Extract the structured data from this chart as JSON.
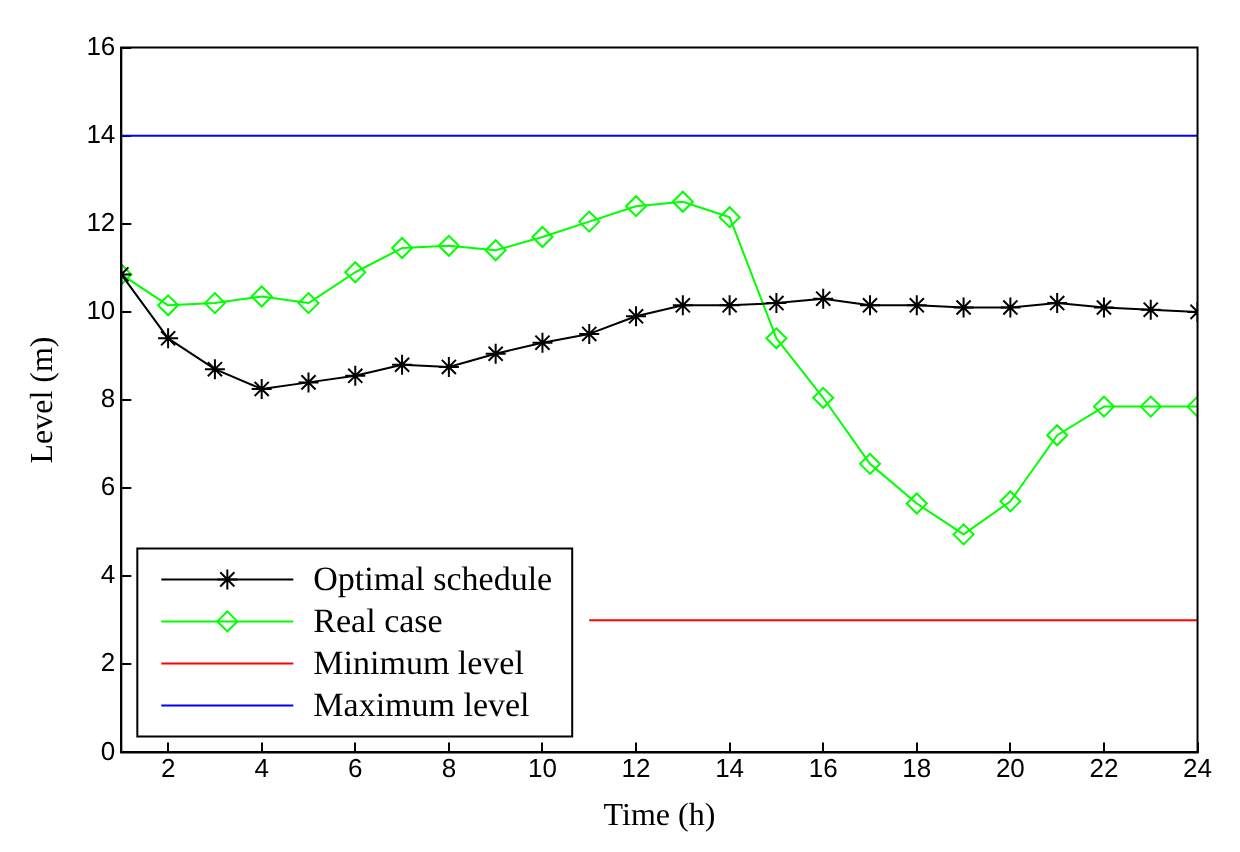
{
  "chart_data": {
    "type": "line",
    "xlabel": "Time (h)",
    "ylabel": "Level (m)",
    "x": [
      1,
      2,
      3,
      4,
      5,
      6,
      7,
      8,
      9,
      10,
      11,
      12,
      13,
      14,
      15,
      16,
      17,
      18,
      19,
      20,
      21,
      22,
      23,
      24
    ],
    "series": [
      {
        "name": "Optimal schedule",
        "color": "#000000",
        "marker": "cross",
        "values": [
          10.85,
          9.4,
          8.7,
          8.25,
          8.4,
          8.55,
          8.8,
          8.75,
          9.05,
          9.3,
          9.5,
          9.9,
          10.15,
          10.15,
          10.2,
          10.3,
          10.15,
          10.15,
          10.1,
          10.1,
          10.2,
          10.1,
          10.05,
          10.0
        ]
      },
      {
        "name": "Real case",
        "color": "#00ff00",
        "marker": "diamond",
        "values": [
          10.85,
          10.15,
          10.2,
          10.35,
          10.2,
          10.9,
          11.45,
          11.5,
          11.4,
          11.7,
          12.05,
          12.4,
          12.5,
          12.15,
          9.4,
          8.05,
          6.55,
          5.65,
          4.95,
          5.7,
          7.2,
          7.85,
          7.85,
          7.85
        ]
      },
      {
        "name": "Minimum level",
        "color": "#ff0000",
        "marker": "none",
        "values": [
          null,
          null,
          null,
          null,
          null,
          null,
          null,
          null,
          null,
          null,
          3,
          3,
          3,
          3,
          3,
          3,
          3,
          3,
          3,
          3,
          3,
          3,
          3,
          3
        ]
      },
      {
        "name": "Maximum level",
        "color": "#0000ff",
        "marker": "none",
        "values": [
          14,
          14,
          14,
          14,
          14,
          14,
          14,
          14,
          14,
          14,
          14,
          14,
          14,
          14,
          14,
          14,
          14,
          14,
          14,
          14,
          14,
          14,
          14,
          14
        ]
      }
    ],
    "xlim": [
      1,
      24
    ],
    "xticks": [
      2,
      4,
      6,
      8,
      10,
      12,
      14,
      16,
      18,
      20,
      22,
      24
    ],
    "ylim": [
      0,
      16
    ],
    "yticks": [
      0,
      2,
      4,
      6,
      8,
      10,
      12,
      14,
      16
    ],
    "grid": false,
    "legend": "bottom left",
    "line_style": "solid"
  }
}
